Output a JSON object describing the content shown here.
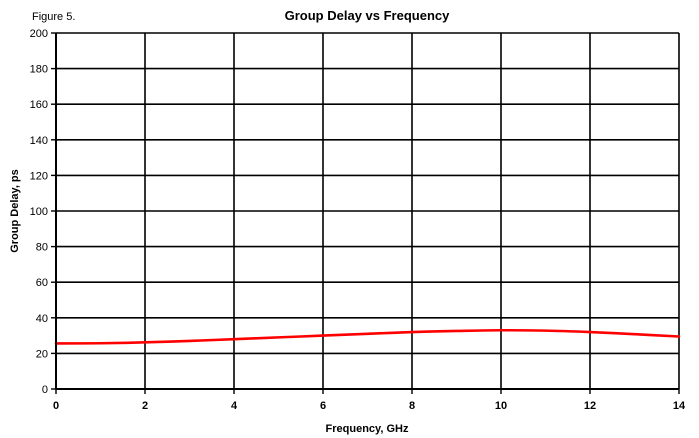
{
  "figure_label": "Figure 5.",
  "chart_data": {
    "type": "line",
    "title": "Group Delay vs Frequency",
    "xlabel": "Frequency, GHz",
    "ylabel": "Group Delay, ps",
    "xlim": [
      0,
      14
    ],
    "ylim": [
      0,
      200
    ],
    "x_ticks": [
      0,
      2,
      4,
      6,
      8,
      10,
      12,
      14
    ],
    "y_ticks": [
      0,
      20,
      40,
      60,
      80,
      100,
      120,
      140,
      160,
      180,
      200
    ],
    "grid": true,
    "legend": "none",
    "series": [
      {
        "color": "#ff0000",
        "x": [
          0,
          1,
          2,
          3,
          4,
          5,
          6,
          7,
          8,
          9,
          10,
          11,
          12,
          13,
          14
        ],
        "y": [
          25.6,
          25.7,
          26.2,
          27.0,
          28.0,
          29.0,
          30.0,
          31.0,
          32.0,
          32.6,
          33.0,
          32.8,
          32.0,
          30.8,
          29.5
        ]
      }
    ]
  }
}
